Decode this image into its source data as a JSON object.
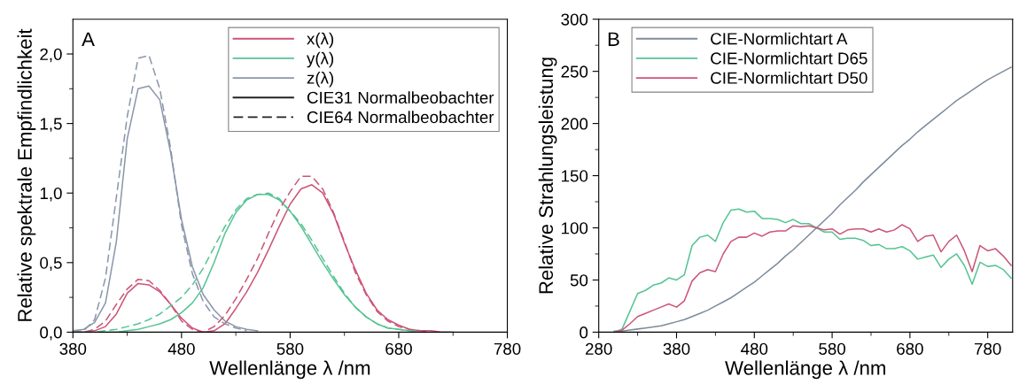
{
  "chart_data": [
    {
      "type": "line",
      "xlabel": "Wellenlänge λ /nm",
      "ylabel": "Relative spektrale Empfindlichkeit",
      "annotations": [
        "A"
      ],
      "x": [
        380,
        390,
        400,
        410,
        420,
        430,
        440,
        450,
        460,
        470,
        480,
        490,
        500,
        510,
        520,
        530,
        540,
        550,
        560,
        570,
        580,
        590,
        600,
        610,
        620,
        630,
        640,
        650,
        660,
        670,
        680,
        690,
        700,
        710,
        720,
        730
      ],
      "xlim": [
        380,
        780
      ],
      "xticks": [
        380,
        {
          "value": 430,
          "label": null
        },
        480,
        {
          "value": 530,
          "label": null
        },
        580,
        {
          "value": 630,
          "label": null
        },
        680,
        {
          "value": 730,
          "label": null
        },
        780
      ],
      "ylim": [
        0,
        2.25
      ],
      "yticks": [
        {
          "value": 0,
          "label": "0,0"
        },
        {
          "value": 0.25,
          "label": null
        },
        {
          "value": 0.5,
          "label": "0,5"
        },
        {
          "value": 0.75,
          "label": null
        },
        {
          "value": 1.0,
          "label": "1,0"
        },
        {
          "value": 1.25,
          "label": null
        },
        {
          "value": 1.5,
          "label": "1,5"
        },
        {
          "value": 1.75,
          "label": null
        },
        {
          "value": 2.0,
          "label": "2,0"
        }
      ],
      "legend": "top right",
      "grid": false,
      "series": [
        {
          "name": "x(λ)",
          "color": "#cc5577",
          "line_style": "solid",
          "values": [
            0,
            0,
            0.01,
            0.04,
            0.13,
            0.28,
            0.35,
            0.34,
            0.29,
            0.2,
            0.1,
            0.03,
            0,
            0.01,
            0.06,
            0.17,
            0.29,
            0.43,
            0.59,
            0.76,
            0.92,
            1.03,
            1.06,
            1.0,
            0.85,
            0.64,
            0.45,
            0.28,
            0.16,
            0.09,
            0.05,
            0.02,
            0.01,
            0.01,
            0,
            0
          ]
        },
        {
          "name": "y(λ)",
          "color": "#55c494",
          "line_style": "solid",
          "values": [
            0,
            0,
            0,
            0,
            0,
            0.01,
            0.02,
            0.04,
            0.06,
            0.09,
            0.14,
            0.21,
            0.32,
            0.5,
            0.71,
            0.86,
            0.95,
            0.99,
            0.99,
            0.95,
            0.87,
            0.76,
            0.63,
            0.5,
            0.38,
            0.27,
            0.18,
            0.11,
            0.06,
            0.03,
            0.02,
            0.01,
            0,
            null,
            null,
            null
          ]
        },
        {
          "name": "z(λ)",
          "color": "#8a97aa",
          "line_style": "solid",
          "values": [
            0.01,
            0.02,
            0.07,
            0.21,
            0.65,
            1.39,
            1.75,
            1.77,
            1.67,
            1.29,
            0.81,
            0.47,
            0.27,
            0.16,
            0.08,
            0.04,
            0.02,
            0.01,
            null,
            null,
            null,
            null,
            null,
            null,
            null,
            null,
            null,
            null,
            null,
            null,
            null,
            null,
            null,
            null,
            null,
            null
          ]
        },
        {
          "color": "#cc5577",
          "line_style": "dashed",
          "values": [
            0,
            0,
            0.02,
            0.08,
            0.2,
            0.31,
            0.38,
            0.37,
            0.3,
            0.2,
            0.08,
            0.02,
            0,
            0.04,
            0.12,
            0.24,
            0.38,
            0.53,
            0.71,
            0.88,
            1.01,
            1.12,
            1.12,
            1.03,
            0.86,
            0.65,
            0.43,
            0.27,
            0.15,
            0.08,
            0.04,
            0.02,
            0.01,
            0,
            0,
            0
          ]
        },
        {
          "color": "#55c494",
          "line_style": "dashed",
          "values": [
            0,
            0,
            0,
            0.01,
            0.02,
            0.04,
            0.06,
            0.09,
            0.13,
            0.19,
            0.25,
            0.34,
            0.46,
            0.61,
            0.76,
            0.88,
            0.96,
            0.99,
            1.0,
            0.96,
            0.87,
            0.78,
            0.66,
            0.53,
            0.4,
            0.28,
            0.18,
            0.11,
            0.06,
            0.03,
            0.02,
            0.01,
            0,
            null,
            null,
            null
          ]
        },
        {
          "color": "#8a97aa",
          "line_style": "dashed",
          "values": [
            0,
            0.01,
            0.09,
            0.39,
            0.97,
            1.55,
            1.97,
            1.99,
            1.75,
            1.32,
            0.77,
            0.42,
            0.22,
            0.11,
            0.06,
            0.03,
            0.01,
            null,
            null,
            null,
            null,
            null,
            null,
            null,
            null,
            null,
            null,
            null,
            null,
            null,
            null,
            null,
            null,
            null,
            null,
            null
          ]
        },
        {
          "name": "CIE31 Normalbeobachter",
          "color": "#222222",
          "line_style": "solid",
          "values": [
            null,
            null,
            null,
            null,
            null,
            null,
            null,
            null,
            null,
            null,
            null,
            null,
            null,
            null,
            null,
            null,
            null,
            null,
            null,
            null,
            null,
            null,
            null,
            null,
            null,
            null,
            null,
            null,
            null,
            null,
            null,
            null,
            null,
            null,
            null,
            null
          ]
        },
        {
          "name": "CIE64 Normalbeobachter",
          "color": "#222222",
          "line_style": "dashed",
          "values": [
            null,
            null,
            null,
            null,
            null,
            null,
            null,
            null,
            null,
            null,
            null,
            null,
            null,
            null,
            null,
            null,
            null,
            null,
            null,
            null,
            null,
            null,
            null,
            null,
            null,
            null,
            null,
            null,
            null,
            null,
            null,
            null,
            null,
            null,
            null,
            null
          ]
        }
      ]
    },
    {
      "type": "line",
      "xlabel": "Wellenlänge λ /nm",
      "ylabel": "Relative Strahlungsleistung",
      "annotations": [
        "B"
      ],
      "x": [
        300,
        310,
        320,
        330,
        340,
        350,
        360,
        370,
        380,
        390,
        400,
        410,
        420,
        430,
        440,
        450,
        460,
        470,
        480,
        490,
        500,
        510,
        520,
        530,
        540,
        550,
        560,
        570,
        580,
        590,
        600,
        610,
        620,
        630,
        640,
        650,
        660,
        670,
        680,
        690,
        700,
        710,
        720,
        730,
        740,
        750,
        760,
        770,
        780,
        790,
        800,
        810
      ],
      "xlim": [
        280,
        812
      ],
      "xticks": [
        280,
        {
          "value": 330,
          "label": null
        },
        380,
        {
          "value": 430,
          "label": null
        },
        480,
        {
          "value": 530,
          "label": null
        },
        580,
        {
          "value": 630,
          "label": null
        },
        680,
        {
          "value": 730,
          "label": null
        },
        780
      ],
      "ylim": [
        0,
        300
      ],
      "yticks": [
        0,
        {
          "value": 25,
          "label": null
        },
        50,
        {
          "value": 75,
          "label": null
        },
        100,
        {
          "value": 125,
          "label": null
        },
        150,
        {
          "value": 175,
          "label": null
        },
        200,
        {
          "value": 225,
          "label": null
        },
        250,
        {
          "value": 275,
          "label": null
        },
        300
      ],
      "legend": "top left",
      "grid": false,
      "series": [
        {
          "name": "CIE-Normlichtart A",
          "color": "#7d8b9c",
          "line_style": "solid",
          "values": [
            1,
            1,
            2,
            3,
            4,
            5,
            6,
            8,
            10,
            12,
            15,
            18,
            21,
            25,
            29,
            33,
            38,
            43,
            48,
            54,
            60,
            66,
            73,
            79,
            86,
            93,
            100,
            107,
            114,
            122,
            129,
            136,
            144,
            151,
            158,
            165,
            172,
            179,
            185,
            192,
            198,
            204,
            210,
            216,
            222,
            227,
            232,
            237,
            242,
            246,
            250,
            254
          ]
        },
        {
          "name": "CIE-Normlichtart D65",
          "color": "#55c494",
          "line_style": "solid",
          "values": [
            0,
            3,
            20,
            37,
            40,
            45,
            47,
            52,
            50,
            55,
            83,
            91,
            93,
            87,
            105,
            117,
            118,
            115,
            116,
            109,
            109,
            108,
            105,
            108,
            104,
            104,
            100,
            96,
            96,
            89,
            90,
            90,
            88,
            83,
            84,
            80,
            80,
            82,
            78,
            70,
            72,
            74,
            62,
            70,
            75,
            64,
            46,
            67,
            63,
            64,
            60,
            52
          ]
        },
        {
          "name": "CIE-Normlichtart D50",
          "color": "#cc5577",
          "line_style": "solid",
          "values": [
            0,
            2,
            8,
            15,
            18,
            21,
            24,
            27,
            24,
            30,
            49,
            57,
            60,
            58,
            75,
            87,
            91,
            91,
            95,
            92,
            96,
            97,
            97,
            102,
            101,
            102,
            100,
            98,
            99,
            94,
            98,
            99,
            99,
            96,
            99,
            96,
            98,
            103,
            99,
            87,
            92,
            93,
            77,
            87,
            93,
            78,
            58,
            83,
            78,
            80,
            73,
            64
          ]
        }
      ]
    }
  ]
}
